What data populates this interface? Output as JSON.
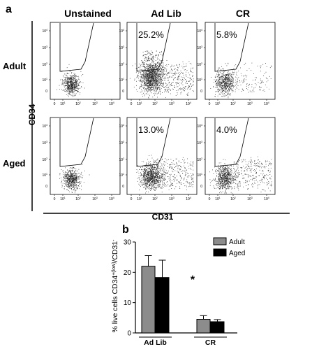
{
  "panel_a": {
    "label": "a",
    "columns": [
      "Unstained",
      "Ad Lib",
      "CR"
    ],
    "rows": [
      "Adult",
      "Aged"
    ],
    "y_axis_label": "CD34",
    "x_axis_label": "CD31",
    "tick_label": "10",
    "zero_label": "0",
    "percentages": {
      "adult_adlib": "25.2%",
      "adult_cr": "5.8%",
      "aged_adlib": "13.0%",
      "aged_cr": "4.0%"
    }
  },
  "panel_b": {
    "label": "b",
    "significance": "*"
  },
  "chart_data": {
    "type": "bar",
    "categories": [
      "Ad Lib",
      "CR"
    ],
    "series": [
      {
        "name": "Adult",
        "values": [
          22,
          4.5
        ],
        "errors": [
          3.5,
          1.2
        ],
        "color": "#8c8c8c"
      },
      {
        "name": "Aged",
        "values": [
          18.3,
          3.7
        ],
        "errors": [
          5.7,
          0.7
        ],
        "color": "#000000"
      }
    ],
    "ylabel": "% live cells CD34+(low)/CD31-",
    "ylabel_parts": {
      "base": "% live cells CD34",
      "sup1": "+(low)",
      "mid": "/CD31",
      "sup2": "-"
    },
    "ylim": [
      0,
      30
    ],
    "yticks": [
      0,
      10,
      20,
      30
    ],
    "legend_position": "top-right",
    "grid": false
  }
}
